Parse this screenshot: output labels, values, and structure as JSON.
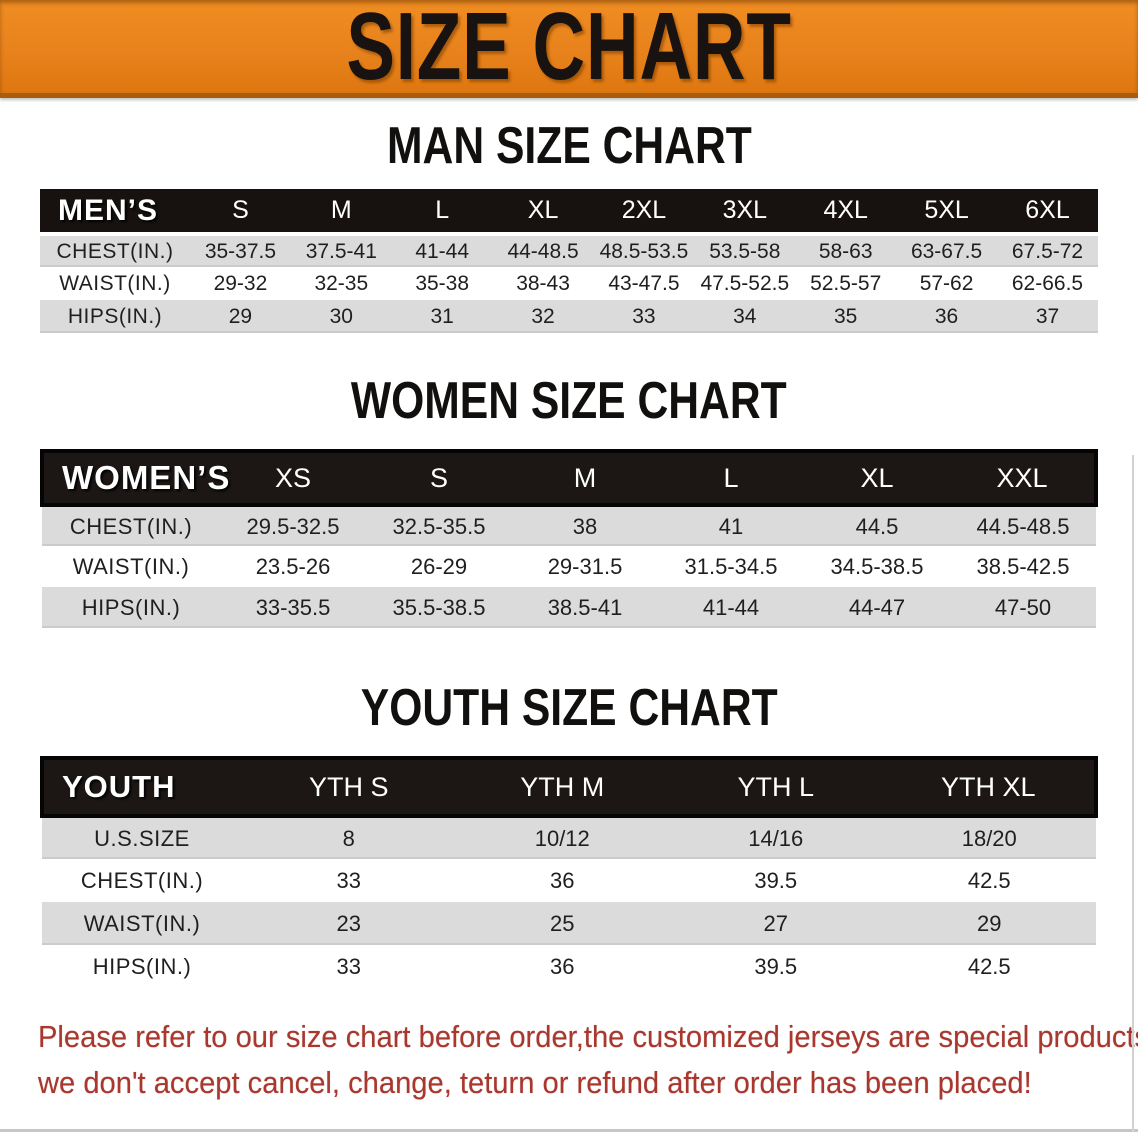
{
  "banner": {
    "title": "SIZE CHART"
  },
  "colors": {
    "accent": "#e8821c",
    "header_bg": "#17120f",
    "stripe": "#dbdbdb",
    "warn_red": "#a8372e"
  },
  "sections": [
    {
      "title": "MAN SIZE CHART",
      "table": {
        "header": [
          "MEN’S",
          "S",
          "M",
          "L",
          "XL",
          "2XL",
          "3XL",
          "4XL",
          "5XL",
          "6XL"
        ],
        "rows": [
          {
            "label": "CHEST(IN.)",
            "values": [
              "35-37.5",
              "37.5-41",
              "41-44",
              "44-48.5",
              "48.5-53.5",
              "53.5-58",
              "58-63",
              "63-67.5",
              "67.5-72"
            ]
          },
          {
            "label": "WAIST(IN.)",
            "values": [
              "29-32",
              "32-35",
              "35-38",
              "38-43",
              "43-47.5",
              "47.5-52.5",
              "52.5-57",
              "57-62",
              "62-66.5"
            ]
          },
          {
            "label": "HIPS(IN.)",
            "values": [
              "29",
              "30",
              "31",
              "32",
              "33",
              "34",
              "35",
              "36",
              "37"
            ]
          }
        ]
      }
    },
    {
      "title": "WOMEN SIZE CHART",
      "table": {
        "header": [
          "WOMEN’S",
          "XS",
          "S",
          "M",
          "L",
          "XL",
          "XXL"
        ],
        "rows": [
          {
            "label": "CHEST(IN.)",
            "values": [
              "29.5-32.5",
              "32.5-35.5",
              "38",
              "41",
              "44.5",
              "44.5-48.5"
            ]
          },
          {
            "label": "WAIST(IN.)",
            "values": [
              "23.5-26",
              "26-29",
              "29-31.5",
              "31.5-34.5",
              "34.5-38.5",
              "38.5-42.5"
            ]
          },
          {
            "label": "HIPS(IN.)",
            "values": [
              "33-35.5",
              "35.5-38.5",
              "38.5-41",
              "41-44",
              "44-47",
              "47-50"
            ]
          }
        ]
      }
    },
    {
      "title": "YOUTH SIZE CHART",
      "table": {
        "header": [
          "YOUTH",
          "YTH S",
          "YTH M",
          "YTH L",
          "YTH XL"
        ],
        "rows": [
          {
            "label": "U.S.SIZE",
            "values": [
              "8",
              "10/12",
              "14/16",
              "18/20"
            ]
          },
          {
            "label": "CHEST(IN.)",
            "values": [
              "33",
              "36",
              "39.5",
              "42.5"
            ]
          },
          {
            "label": "WAIST(IN.)",
            "values": [
              "23",
              "25",
              "27",
              "29"
            ]
          },
          {
            "label": "HIPS(IN.)",
            "values": [
              "33",
              "36",
              "39.5",
              "42.5"
            ]
          }
        ]
      }
    }
  ],
  "footer": {
    "lines": [
      "Please refer to our size chart before order,the customized jerseys are special products,",
      "we don't accept cancel, change, teturn or refund after order has been placed!"
    ]
  }
}
